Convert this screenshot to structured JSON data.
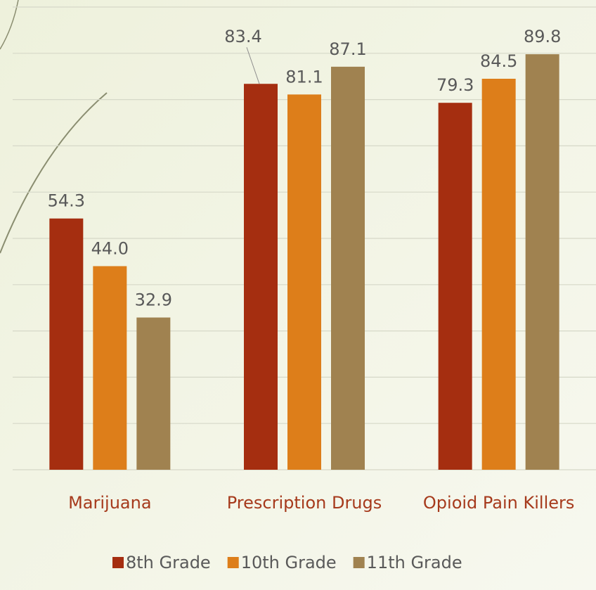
{
  "chart_data": {
    "type": "bar",
    "categories": [
      "Marijuana",
      "Prescription Drugs",
      "Opioid Pain Killers"
    ],
    "series": [
      {
        "name": "8th Grade",
        "color": "#a52e10",
        "values": [
          54.3,
          83.4,
          79.3
        ],
        "value_labels": [
          "54.3",
          "83.4",
          "79.3"
        ]
      },
      {
        "name": "10th Grade",
        "color": "#dd7e1a",
        "values": [
          44.0,
          81.1,
          84.5
        ],
        "value_labels": [
          "44.0",
          "81.1",
          "84.5"
        ]
      },
      {
        "name": "11th Grade",
        "color": "#a08250",
        "values": [
          32.9,
          87.1,
          89.8
        ],
        "value_labels": [
          "32.9",
          "87.1",
          "89.8"
        ]
      }
    ],
    "ylim": [
      0,
      100
    ],
    "yticks": [
      0,
      10,
      20,
      30,
      40,
      50,
      60,
      70,
      80,
      90,
      100
    ],
    "grid": true
  }
}
